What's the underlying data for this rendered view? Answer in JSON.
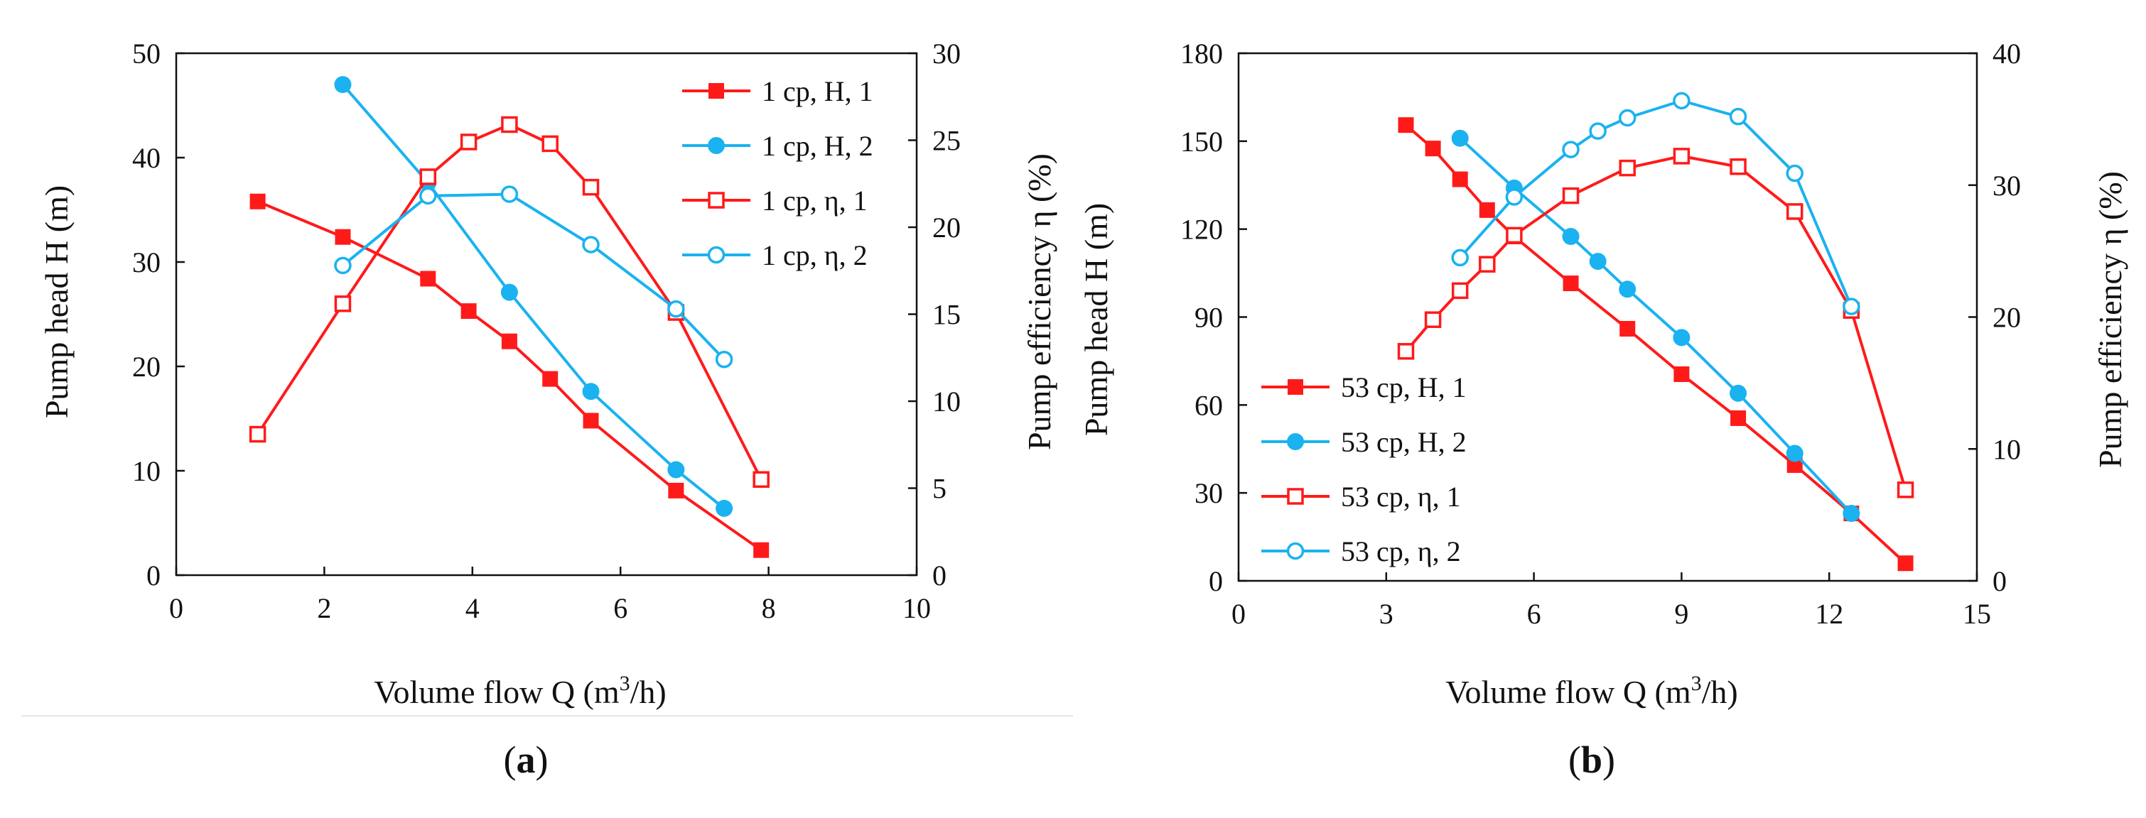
{
  "chart_data": [
    {
      "type": "line",
      "panel_label": "a",
      "xlabel": "Volume flow Q (m",
      "xlabel_sup": "3",
      "xlabel_tail": "/h)",
      "ylabel": "Pump head H (m)",
      "y2label": "Pump efficiency η (%)",
      "xlim": [
        0,
        10
      ],
      "ylim": [
        0,
        50
      ],
      "y2lim": [
        0,
        30
      ],
      "x_ticks": [
        0,
        2,
        4,
        6,
        8,
        10
      ],
      "y_ticks": [
        0,
        10,
        20,
        30,
        40,
        50
      ],
      "y2_ticks": [
        0,
        5,
        10,
        15,
        20,
        25,
        30
      ],
      "legend_position": "top-right",
      "grid": false,
      "series": [
        {
          "name": "1 cp, H, 1",
          "axis": "left",
          "color": "#ff1a1a",
          "marker": "square-filled",
          "x": [
            1.1,
            2.25,
            3.4,
            3.95,
            4.5,
            5.05,
            5.6,
            6.75,
            7.9
          ],
          "y": [
            35.8,
            32.4,
            28.4,
            25.3,
            22.4,
            18.8,
            14.8,
            8.1,
            2.4
          ]
        },
        {
          "name": "1 cp, H, 2",
          "axis": "left",
          "color": "#1ab2f0",
          "marker": "circle-filled",
          "x": [
            2.25,
            3.4,
            4.5,
            5.6,
            6.75,
            7.4
          ],
          "y": [
            47.0,
            37.6,
            27.1,
            17.6,
            10.1,
            6.4
          ]
        },
        {
          "name": "1 cp, η, 1",
          "axis": "right",
          "color": "#ff1a1a",
          "marker": "square-open",
          "x": [
            1.1,
            2.25,
            3.4,
            3.95,
            4.5,
            5.05,
            5.6,
            6.75,
            7.9
          ],
          "y": [
            8.1,
            15.6,
            22.9,
            24.9,
            25.9,
            24.8,
            22.3,
            15.1,
            5.5
          ]
        },
        {
          "name": "1 cp, η, 2",
          "axis": "right",
          "color": "#1ab2f0",
          "marker": "circle-open",
          "x": [
            2.25,
            3.4,
            4.5,
            5.6,
            6.75,
            7.4
          ],
          "y": [
            17.8,
            21.8,
            21.9,
            19.0,
            15.3,
            12.4
          ]
        }
      ]
    },
    {
      "type": "line",
      "panel_label": "b",
      "xlabel": "Volume flow Q (m",
      "xlabel_sup": "3",
      "xlabel_tail": "/h)",
      "ylabel": "Pump head H (m)",
      "y2label": "Pump efficiency η (%)",
      "xlim": [
        0,
        15
      ],
      "ylim": [
        0,
        180
      ],
      "y2lim": [
        0,
        40
      ],
      "x_ticks": [
        0,
        3,
        6,
        9,
        12,
        15
      ],
      "y_ticks": [
        0,
        30,
        60,
        90,
        120,
        150,
        180
      ],
      "y2_ticks": [
        0,
        10,
        20,
        30,
        40
      ],
      "legend_position": "bottom-left",
      "grid": false,
      "series": [
        {
          "name": "53 cp, H, 1",
          "axis": "left",
          "color": "#ff1a1a",
          "marker": "square-filled",
          "x": [
            3.4,
            3.95,
            4.5,
            5.05,
            5.6,
            6.75,
            7.9,
            9.0,
            10.15,
            11.3,
            12.45,
            13.55
          ],
          "y": [
            155.5,
            147.5,
            137.0,
            126.5,
            117.5,
            101.5,
            86.0,
            70.5,
            55.5,
            39.5,
            23.0,
            6.0
          ]
        },
        {
          "name": "53 cp, H, 2",
          "axis": "left",
          "color": "#1ab2f0",
          "marker": "circle-filled",
          "x": [
            4.5,
            5.6,
            6.75,
            7.3,
            7.9,
            9.0,
            10.15,
            11.3,
            12.45
          ],
          "y": [
            151.0,
            134.0,
            117.5,
            109.0,
            99.5,
            83.0,
            64.0,
            43.5,
            23.0
          ]
        },
        {
          "name": "53 cp, η, 1",
          "axis": "right",
          "color": "#ff1a1a",
          "marker": "square-open",
          "x": [
            3.4,
            3.95,
            4.5,
            5.05,
            5.6,
            6.75,
            7.9,
            9.0,
            10.15,
            11.3,
            12.45,
            13.55
          ],
          "y": [
            17.4,
            19.8,
            22.0,
            24.0,
            26.2,
            29.2,
            31.3,
            32.2,
            31.4,
            28.0,
            20.5,
            6.9
          ]
        },
        {
          "name": "53 cp, η, 2",
          "axis": "right",
          "color": "#1ab2f0",
          "marker": "circle-open",
          "x": [
            4.5,
            5.6,
            6.75,
            7.3,
            7.9,
            9.0,
            10.15,
            11.3,
            12.45
          ],
          "y": [
            24.5,
            29.1,
            32.7,
            34.1,
            35.1,
            36.4,
            35.2,
            30.9,
            20.8
          ]
        }
      ]
    }
  ]
}
